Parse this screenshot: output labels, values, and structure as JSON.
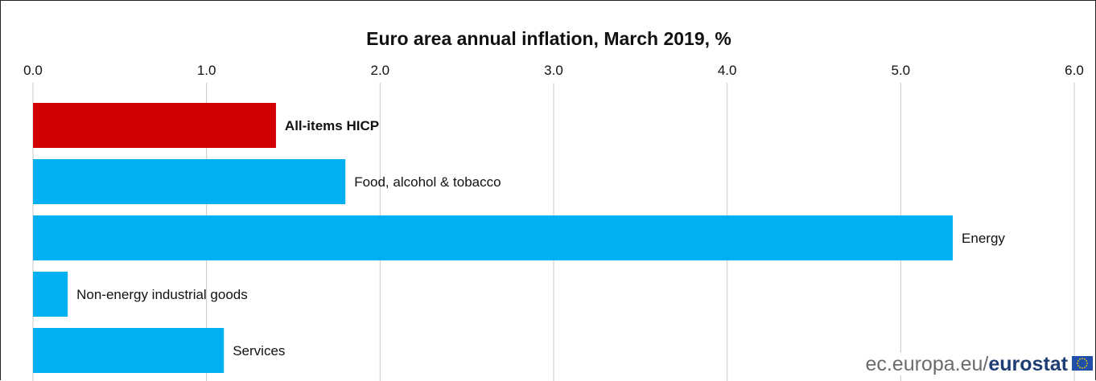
{
  "chart_data": {
    "type": "bar",
    "orientation": "horizontal",
    "title": "Euro area annual inflation, March 2019, %",
    "xlabel": "",
    "ylabel": "",
    "xlim": [
      0,
      6
    ],
    "x_ticks": [
      "0.0",
      "1.0",
      "2.0",
      "3.0",
      "4.0",
      "5.0",
      "6.0"
    ],
    "tick_axis_position": "top",
    "grid": true,
    "legend": "none",
    "categories": [
      "All-items HICP",
      "Food, alcohol & tobacco",
      "Energy",
      "Non-energy industrial goods",
      "Services"
    ],
    "values": [
      1.4,
      1.8,
      5.3,
      0.2,
      1.1
    ],
    "bar_colors": [
      "#d20000",
      "#00b0f0",
      "#00b0f0",
      "#00b0f0",
      "#00b0f0"
    ],
    "bold_categories": [
      "All-items HICP"
    ]
  },
  "source": {
    "prefix": "ec.europa.eu/",
    "brand": "eurostat"
  },
  "colors": {
    "highlight": "#d20000",
    "bar": "#00b0f0",
    "grid": "#c8c8c8",
    "flag": "#1f4fa8",
    "flag_stars": "#ffd200"
  },
  "icons": {
    "flag": "eu-flag-icon"
  }
}
